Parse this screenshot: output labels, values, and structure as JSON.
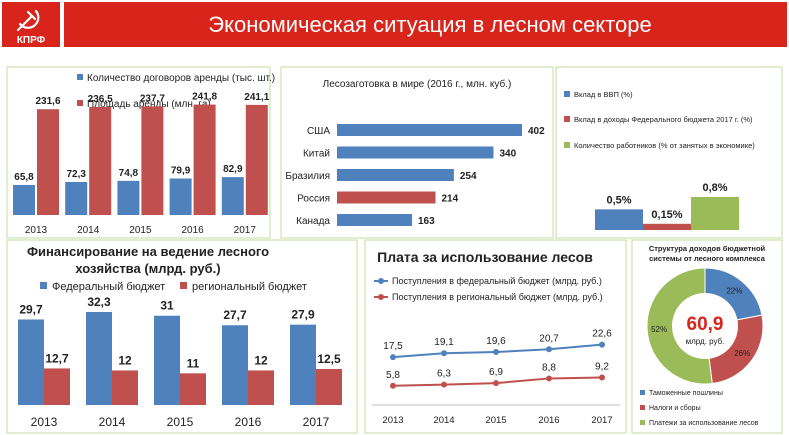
{
  "header": {
    "title": "Экономическая ситуация в лесном секторе",
    "logo_text": "КПРФ",
    "accent": "#d9241b"
  },
  "colors": {
    "blue": "#4f81bd",
    "red": "#c0504d",
    "green": "#9bbb59",
    "panel_border": "#c6dca0"
  },
  "chart_data": [
    {
      "id": "leases",
      "type": "bar",
      "categories": [
        "2013",
        "2014",
        "2015",
        "2016",
        "2017"
      ],
      "series": [
        {
          "name": "Количество договоров аренды (тыс. шт.)",
          "values": [
            65.8,
            72.3,
            74.8,
            79.9,
            82.9
          ],
          "labels": [
            "65,8",
            "72,3",
            "74,8",
            "79,9",
            "82,9"
          ],
          "color": "#4f81bd"
        },
        {
          "name": "Площадь аренды (млн. га)",
          "values": [
            231.6,
            236.5,
            237.7,
            241.8,
            241.1
          ],
          "labels": [
            "231,6",
            "236,5",
            "237,7",
            "241,8",
            "241,1"
          ],
          "color": "#c0504d"
        }
      ],
      "ylim": [
        0,
        300
      ]
    },
    {
      "id": "logging",
      "type": "bar",
      "orientation": "horizontal",
      "title": "Лесозаготовка в мире (2016 г., млн. куб.)",
      "categories": [
        "США",
        "Китай",
        "Бразилия",
        "Россия",
        "Канада"
      ],
      "values": [
        402,
        340,
        254,
        214,
        163
      ],
      "highlight": "Россия",
      "xlim": [
        0,
        420
      ]
    },
    {
      "id": "gdp",
      "type": "bar",
      "categories": [
        "Вклад в ВВП (%)",
        "Вклад в доходы Федерального бюджета 2017 г. (%)",
        "Количество работников (% от занятых в экономике)"
      ],
      "values": [
        0.5,
        0.15,
        0.8
      ],
      "labels": [
        "0,5%",
        "0,15%",
        "0,8%"
      ],
      "colors": [
        "#4f81bd",
        "#c0504d",
        "#9bbb59"
      ],
      "ylim": [
        0,
        1.0
      ]
    },
    {
      "id": "financing",
      "type": "bar",
      "title": "Финансирование на ведение лесного хозяйства (млрд. руб.)",
      "title_lines": [
        "Финансирование на ведение лесного",
        "хозяйства (млрд. руб.)"
      ],
      "categories": [
        "2013",
        "2014",
        "2015",
        "2016",
        "2017"
      ],
      "series": [
        {
          "name": "Федеральный бюджет",
          "values": [
            29.7,
            32.3,
            31,
            27.7,
            27.9
          ],
          "labels": [
            "29,7",
            "32,3",
            "31",
            "27,7",
            "27,9"
          ],
          "color": "#4f81bd"
        },
        {
          "name": "региональный бюджет",
          "values": [
            12.7,
            12,
            11,
            12,
            12.5
          ],
          "labels": [
            "12,7",
            "12",
            "11",
            "12",
            "12,5"
          ],
          "color": "#c0504d"
        }
      ],
      "ylim": [
        0,
        35
      ]
    },
    {
      "id": "fees",
      "type": "line",
      "title": "Плата за использование лесов",
      "x": [
        "2013",
        "2014",
        "2015",
        "2016",
        "2017"
      ],
      "series": [
        {
          "name": "Поступления в федеральный бюджет (млрд. руб.)",
          "values": [
            17.5,
            19.1,
            19.6,
            20.7,
            22.6
          ],
          "labels": [
            "17,5",
            "19,1",
            "19,6",
            "20,7",
            "22,6"
          ],
          "color": "#4f81bd"
        },
        {
          "name": "Поступления в региональный бюджет (млрд. руб.)",
          "values": [
            5.8,
            6.3,
            6.9,
            8.8,
            9.2
          ],
          "labels": [
            "5,8",
            "6,3",
            "6,9",
            "8,8",
            "9,2"
          ],
          "color": "#c0504d"
        }
      ],
      "ylim": [
        0,
        30
      ]
    },
    {
      "id": "structure",
      "type": "pie",
      "title": "Структура доходов бюджетной системы от лесного комплекса",
      "title_lines": [
        "Структура доходов бюджетной",
        "системы от лесного комплекса"
      ],
      "center_value": "60,9",
      "center_unit": "млрд. руб.",
      "slices": [
        {
          "name": "Таможенные пошлины",
          "value": 22,
          "label": "22%",
          "color": "#4f81bd"
        },
        {
          "name": "Налоги и сборы",
          "value": 26,
          "label": "26%",
          "color": "#c0504d"
        },
        {
          "name": "Платежи за использование лесов",
          "value": 52,
          "label": "52%",
          "color": "#9bbb59"
        }
      ]
    }
  ]
}
